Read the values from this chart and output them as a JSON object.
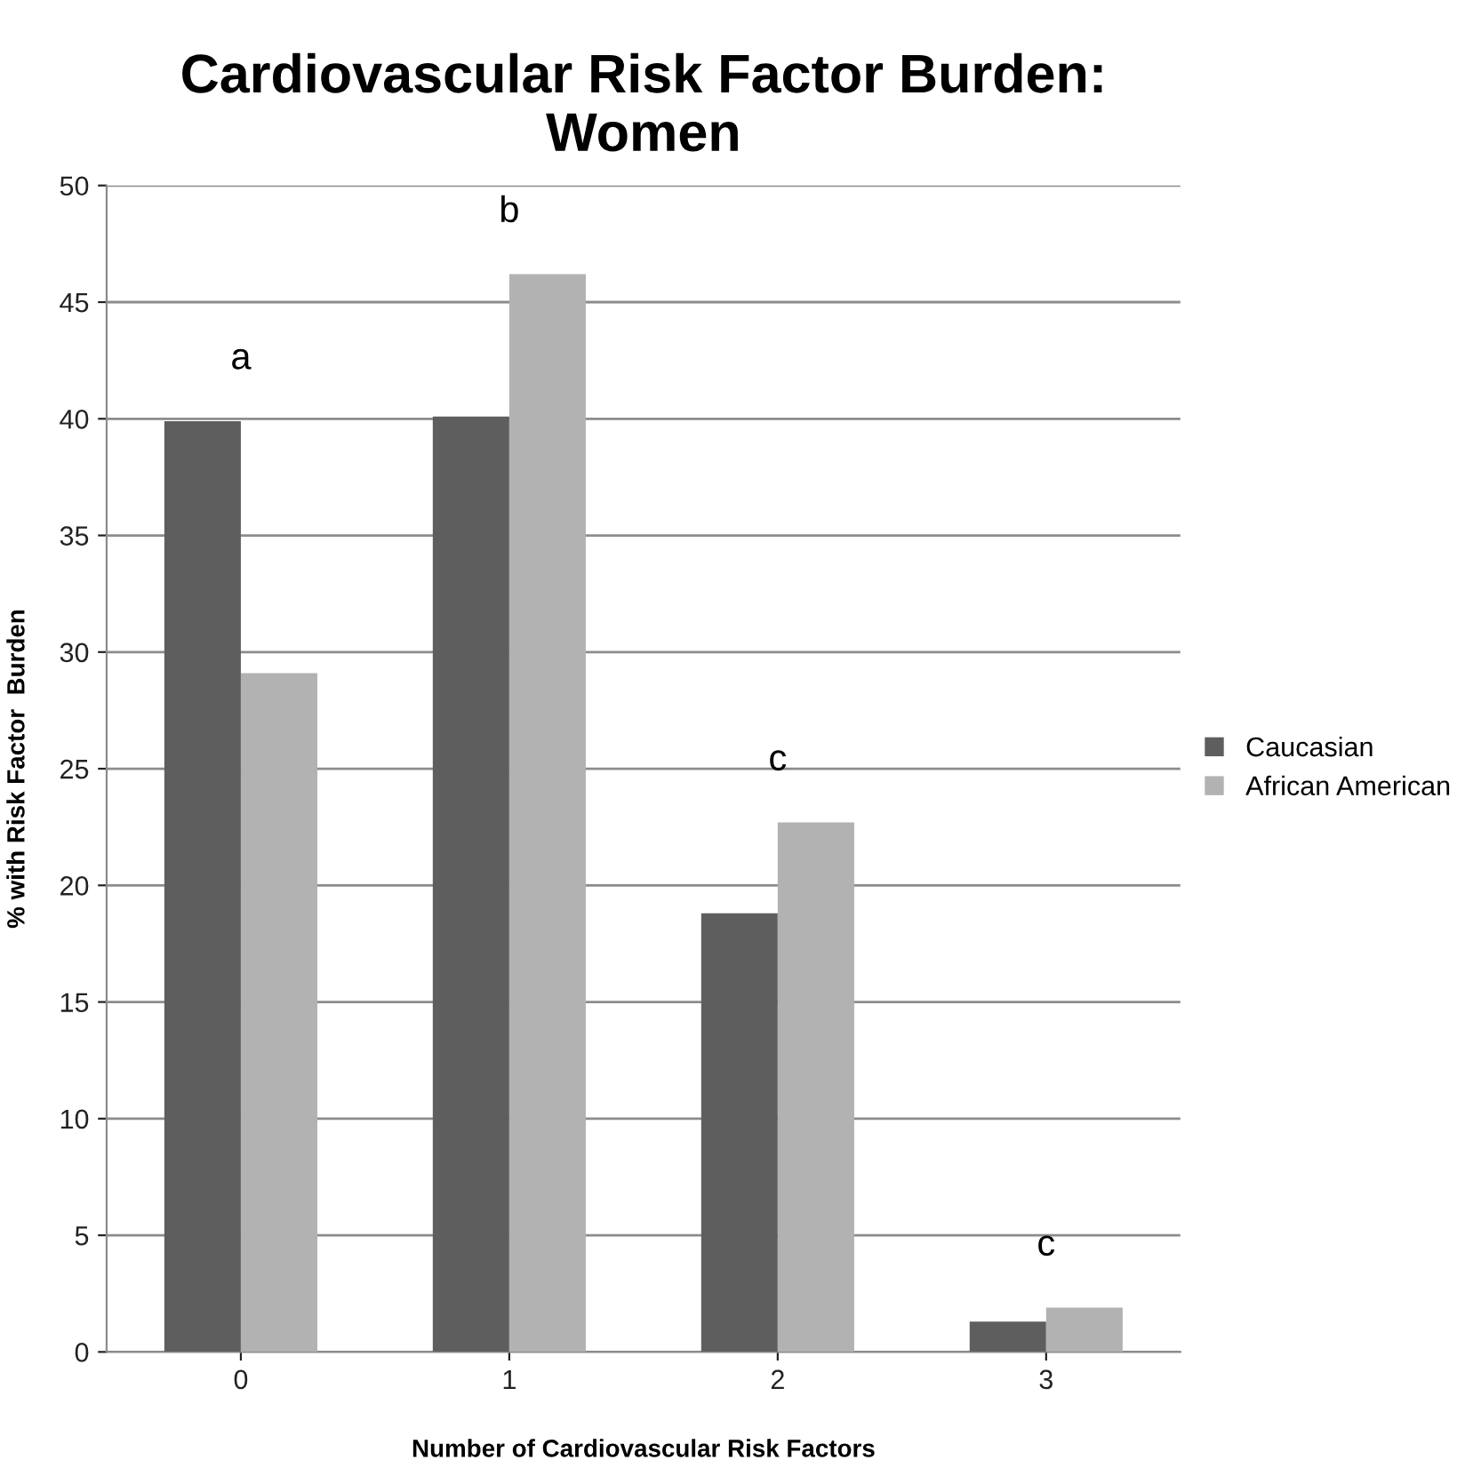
{
  "chart_data": {
    "type": "bar",
    "title": "Cardiovascular Risk Factor Burden:\nWomen",
    "xlabel": "Number of Cardiovascular Risk Factors",
    "ylabel": "% with Risk Factor  Burden",
    "categories": [
      "0",
      "1",
      "2",
      "3"
    ],
    "series": [
      {
        "name": "Caucasian",
        "color": "#5e5e5e",
        "values": [
          39.9,
          40.1,
          18.8,
          1.3
        ]
      },
      {
        "name": "African American",
        "color": "#b2b2b2",
        "values": [
          29.1,
          46.2,
          22.7,
          1.9
        ]
      }
    ],
    "annotations": [
      "a",
      "b",
      "c",
      "c"
    ],
    "ylim": [
      0,
      50
    ],
    "yticks": [
      0,
      5,
      10,
      15,
      20,
      25,
      30,
      35,
      40,
      45,
      50
    ],
    "grid": "y",
    "legend": "right"
  }
}
